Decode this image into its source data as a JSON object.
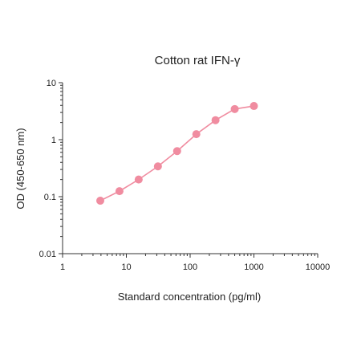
{
  "chart_data": {
    "type": "scatter",
    "title": "Cotton rat IFN-γ",
    "xlabel": "Standard concentration (pg/ml)",
    "ylabel": "OD (450-650 nm)",
    "x_scale": "log",
    "y_scale": "log",
    "xlim": [
      1,
      10000
    ],
    "ylim": [
      0.01,
      10
    ],
    "x_ticks": [
      1,
      10,
      100,
      1000,
      10000
    ],
    "x_tick_labels": [
      "1",
      "10",
      "100",
      "1000",
      "10000"
    ],
    "y_ticks": [
      0.01,
      0.1,
      1,
      10
    ],
    "y_tick_labels": [
      "0.01",
      "0.1",
      "1",
      "10"
    ],
    "grid": false,
    "series": [
      {
        "color": "#f08ca0",
        "connected": true,
        "x": [
          3.9,
          7.8,
          15.6,
          31.25,
          62.5,
          125,
          250,
          500,
          1000
        ],
        "y": [
          0.085,
          0.125,
          0.2,
          0.34,
          0.63,
          1.25,
          2.2,
          3.45,
          3.9
        ]
      }
    ]
  }
}
